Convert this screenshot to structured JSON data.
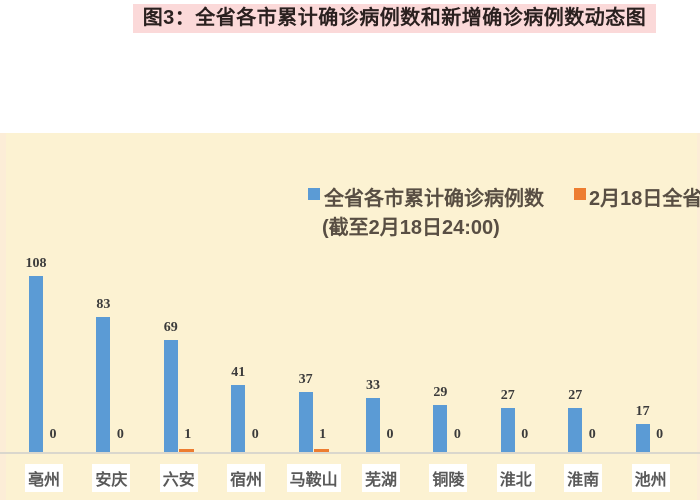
{
  "title": "图3：全省各市累计确诊病例数和新增确诊病例数动态图",
  "legend": {
    "series1_label": "全省各市累计确诊病例数",
    "series1_sublabel": "(截至2月18日24:00)",
    "series2_label": "2月18日全省"
  },
  "colors": {
    "series1_blue": "#5b9bd5",
    "series2_orange": "#ed7d31",
    "chart_background": "#fcf2d2",
    "title_background": "#fbd9d9",
    "title_text": "#2a201f",
    "label_text": "#3b3b3b",
    "city_label_text": "#595959",
    "legend_text": "#584e43"
  },
  "chart_data": {
    "type": "bar",
    "title": "图3：全省各市累计确诊病例数和新增确诊病例数动态图",
    "categories": [
      "亳州",
      "安庆",
      "六安",
      "宿州",
      "马鞍山",
      "芜湖",
      "铜陵",
      "淮北",
      "淮南",
      "池州"
    ],
    "series": [
      {
        "name": "全省各市累计确诊病例数 (截至2月18日24:00)",
        "color": "#5b9bd5",
        "values": [
          108,
          83,
          69,
          41,
          37,
          33,
          29,
          27,
          27,
          17
        ]
      },
      {
        "name": "2月18日全省",
        "color": "#ed7d31",
        "values": [
          0,
          0,
          1,
          0,
          1,
          0,
          0,
          0,
          0,
          0
        ]
      }
    ],
    "xlabel": "",
    "ylabel": "",
    "y_axis_visible": false,
    "gridlines": false,
    "data_labels_shown": true,
    "legend_position": "top"
  }
}
